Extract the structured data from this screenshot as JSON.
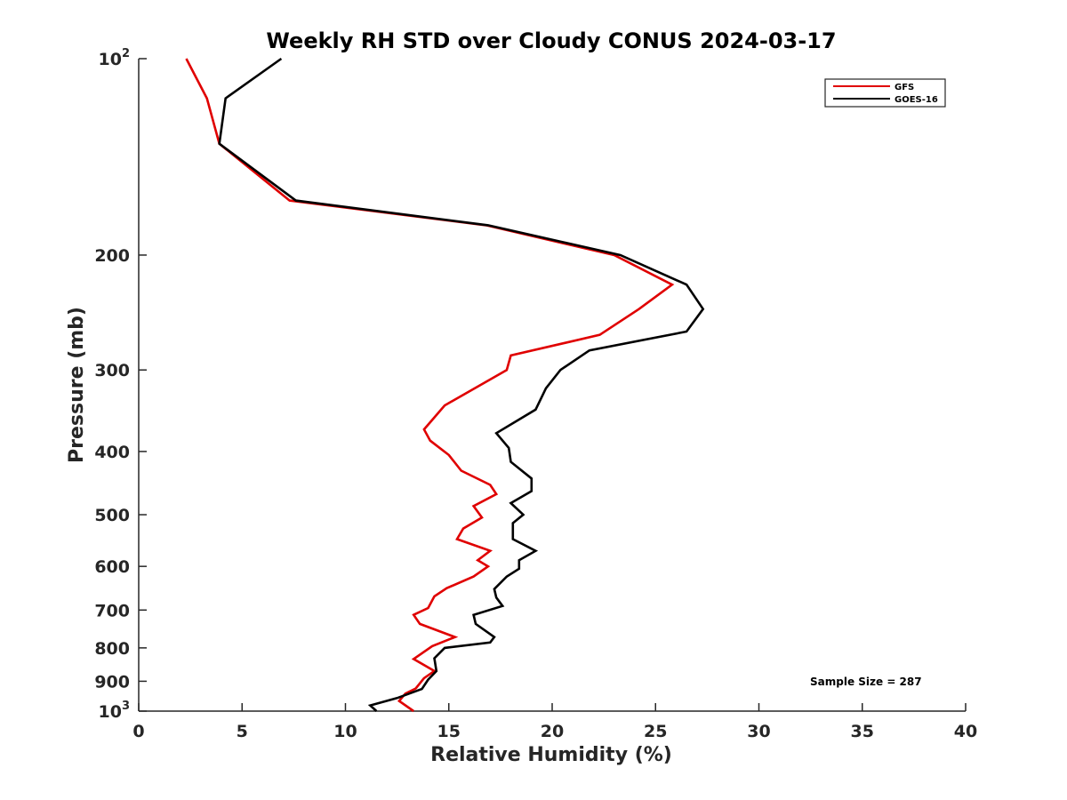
{
  "chart_data": {
    "type": "line",
    "title": "Weekly RH STD over Cloudy CONUS 2024-03-17",
    "xlabel": "Relative Humidity (%)",
    "ylabel": "Pressure (mb)",
    "xlim": [
      0,
      40
    ],
    "ylim": [
      100,
      1000
    ],
    "y_scale": "log",
    "y_reversed": true,
    "grid": false,
    "legend_position": "top-right",
    "x_ticks": [
      "0",
      "5",
      "10",
      "15",
      "20",
      "25",
      "30",
      "35",
      "40"
    ],
    "y_ticks": [
      {
        "value": 100,
        "base": "10",
        "exp": "2"
      },
      {
        "value": 200,
        "label": "200"
      },
      {
        "value": 300,
        "label": "300"
      },
      {
        "value": 400,
        "label": "400"
      },
      {
        "value": 500,
        "label": "500"
      },
      {
        "value": 600,
        "label": "600"
      },
      {
        "value": 700,
        "label": "700"
      },
      {
        "value": 800,
        "label": "800"
      },
      {
        "value": 900,
        "label": "900"
      },
      {
        "value": 1000,
        "base": "10",
        "exp": "3"
      }
    ],
    "annotation": "Sample Size = 287",
    "series": [
      {
        "name": "GFS",
        "color": "#e00000",
        "points": [
          [
            2.3,
            100
          ],
          [
            3.3,
            115
          ],
          [
            3.9,
            135
          ],
          [
            7.3,
            165
          ],
          [
            16.8,
            180
          ],
          [
            23.0,
            200
          ],
          [
            25.8,
            222
          ],
          [
            24.2,
            242
          ],
          [
            22.3,
            265
          ],
          [
            18.0,
            285
          ],
          [
            17.8,
            300
          ],
          [
            14.8,
            340
          ],
          [
            13.8,
            370
          ],
          [
            14.1,
            385
          ],
          [
            15.0,
            405
          ],
          [
            15.6,
            428
          ],
          [
            17.0,
            450
          ],
          [
            17.3,
            465
          ],
          [
            16.2,
            485
          ],
          [
            16.6,
            505
          ],
          [
            15.7,
            525
          ],
          [
            15.4,
            545
          ],
          [
            17.0,
            568
          ],
          [
            16.4,
            587
          ],
          [
            16.9,
            600
          ],
          [
            16.2,
            622
          ],
          [
            14.9,
            648
          ],
          [
            14.3,
            667
          ],
          [
            14.0,
            695
          ],
          [
            13.3,
            712
          ],
          [
            13.6,
            735
          ],
          [
            15.3,
            770
          ],
          [
            14.2,
            795
          ],
          [
            13.3,
            832
          ],
          [
            14.3,
            868
          ],
          [
            13.8,
            890
          ],
          [
            13.4,
            923
          ],
          [
            12.9,
            940
          ],
          [
            12.6,
            965
          ],
          [
            13.3,
            1000
          ]
        ]
      },
      {
        "name": "GOES-16",
        "color": "#000000",
        "points": [
          [
            6.9,
            100
          ],
          [
            4.2,
            115
          ],
          [
            3.9,
            135
          ],
          [
            7.6,
            165
          ],
          [
            16.9,
            180
          ],
          [
            23.3,
            200
          ],
          [
            26.5,
            222
          ],
          [
            27.3,
            242
          ],
          [
            26.5,
            262
          ],
          [
            21.8,
            280
          ],
          [
            20.4,
            300
          ],
          [
            19.7,
            320
          ],
          [
            19.2,
            345
          ],
          [
            17.3,
            375
          ],
          [
            17.9,
            395
          ],
          [
            18.0,
            415
          ],
          [
            19.0,
            440
          ],
          [
            19.0,
            460
          ],
          [
            18.0,
            480
          ],
          [
            18.6,
            500
          ],
          [
            18.1,
            515
          ],
          [
            18.1,
            545
          ],
          [
            19.2,
            568
          ],
          [
            18.4,
            587
          ],
          [
            18.4,
            605
          ],
          [
            17.8,
            622
          ],
          [
            17.2,
            650
          ],
          [
            17.3,
            670
          ],
          [
            17.6,
            690
          ],
          [
            16.2,
            712
          ],
          [
            16.3,
            735
          ],
          [
            17.2,
            770
          ],
          [
            17.0,
            785
          ],
          [
            14.8,
            800
          ],
          [
            14.3,
            830
          ],
          [
            14.4,
            868
          ],
          [
            14.0,
            895
          ],
          [
            13.7,
            925
          ],
          [
            12.5,
            955
          ],
          [
            11.2,
            980
          ],
          [
            11.5,
            1000
          ]
        ]
      }
    ]
  }
}
